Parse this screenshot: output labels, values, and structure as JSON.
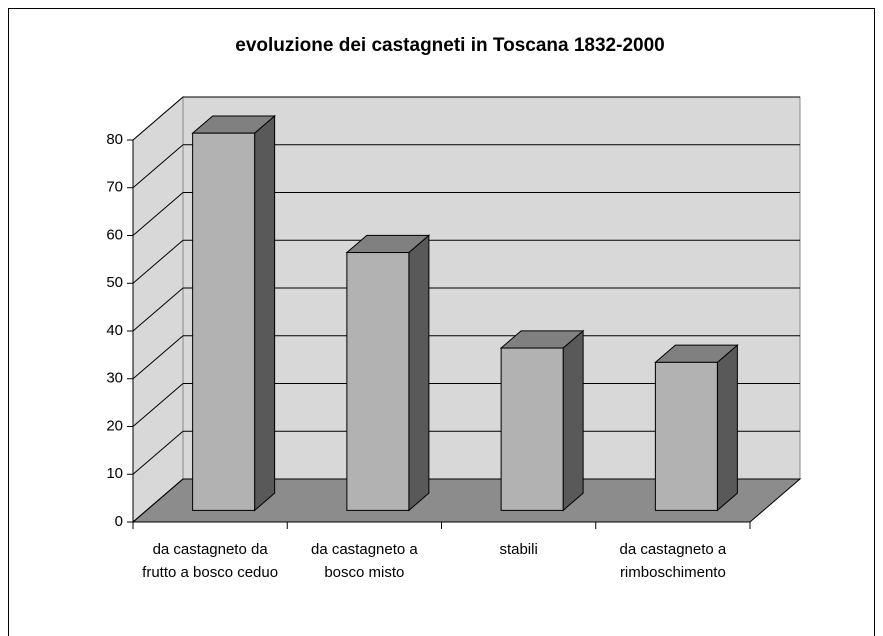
{
  "chart_data": {
    "type": "bar3d",
    "title": "evoluzione dei castagneti in Toscana 1832-2000",
    "categories": [
      "da castagneto da frutto a bosco ceduo",
      "da castagneto a bosco misto",
      "stabili",
      "da castagneto a rimboschimento"
    ],
    "values": [
      79,
      54,
      34,
      31
    ],
    "color": "#b2b2b2",
    "ylim": [
      0,
      80
    ],
    "yticks": [
      0,
      10,
      20,
      30,
      40,
      50,
      60,
      70,
      80
    ],
    "grid": true
  }
}
